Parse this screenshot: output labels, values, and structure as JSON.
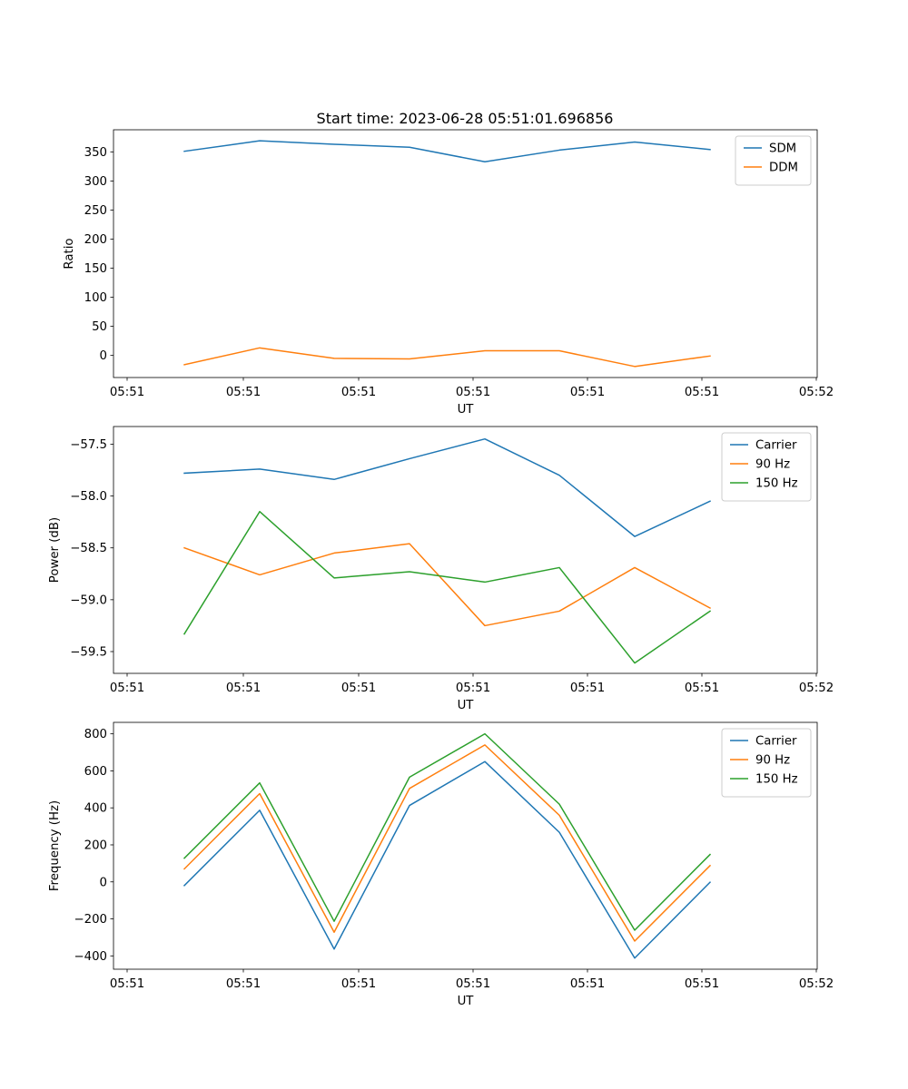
{
  "figure": {
    "title": "Start time: 2023-06-28 05:51:01.696856"
  },
  "chart_data": [
    {
      "type": "line",
      "title": "Start time: 2023-06-28 05:51:01.696856",
      "xlabel": "UT",
      "ylabel": "Ratio",
      "x_tick_labels": [
        "05:51",
        "05:51",
        "05:51",
        "05:51",
        "05:51",
        "05:51",
        "05:52"
      ],
      "y_ticks": [
        0,
        50,
        100,
        150,
        200,
        250,
        300,
        350
      ],
      "ylim": [
        -38,
        388
      ],
      "legend_position": "top-right",
      "grid": false,
      "series": [
        {
          "name": "SDM",
          "color": "#1f77b4",
          "values": [
            351,
            369,
            363,
            358,
            333,
            353,
            367,
            354
          ]
        },
        {
          "name": "DDM",
          "color": "#ff7f0e",
          "values": [
            -16,
            13,
            -5,
            -6,
            8,
            8,
            -19,
            -1
          ]
        }
      ]
    },
    {
      "type": "line",
      "title": "",
      "xlabel": "UT",
      "ylabel": "Power (dB)",
      "x_tick_labels": [
        "05:51",
        "05:51",
        "05:51",
        "05:51",
        "05:51",
        "05:51",
        "05:52"
      ],
      "y_ticks": [
        -59.5,
        -59.0,
        -58.5,
        -58.0,
        -57.5
      ],
      "y_tick_labels": [
        "−59.5",
        "−59.0",
        "−58.5",
        "−58.0",
        "−57.5"
      ],
      "ylim": [
        -59.71,
        -57.33
      ],
      "legend_position": "top-right",
      "grid": false,
      "series": [
        {
          "name": "Carrier",
          "color": "#1f77b4",
          "values": [
            -57.78,
            -57.74,
            -57.84,
            -57.64,
            -57.45,
            -57.8,
            -58.39,
            -58.05
          ]
        },
        {
          "name": "90 Hz",
          "color": "#ff7f0e",
          "values": [
            -58.5,
            -58.76,
            -58.55,
            -58.46,
            -59.25,
            -59.11,
            -58.69,
            -59.08
          ]
        },
        {
          "name": "150 Hz",
          "color": "#2ca02c",
          "values": [
            -59.33,
            -58.15,
            -58.79,
            -58.73,
            -58.83,
            -58.69,
            -59.61,
            -59.11
          ]
        }
      ]
    },
    {
      "type": "line",
      "title": "",
      "xlabel": "UT",
      "ylabel": "Frequency (Hz)",
      "x_tick_labels": [
        "05:51",
        "05:51",
        "05:51",
        "05:51",
        "05:51",
        "05:51",
        "05:52"
      ],
      "y_ticks": [
        -400,
        -200,
        0,
        200,
        400,
        600,
        800
      ],
      "y_tick_labels": [
        "−400",
        "−200",
        "0",
        "200",
        "400",
        "600",
        "800"
      ],
      "ylim": [
        -472,
        862
      ],
      "legend_position": "top-right",
      "grid": false,
      "series": [
        {
          "name": "Carrier",
          "color": "#1f77b4",
          "values": [
            -20,
            387,
            -363,
            413,
            650,
            268,
            -412,
            -2
          ]
        },
        {
          "name": "90 Hz",
          "color": "#ff7f0e",
          "values": [
            70,
            477,
            -272,
            505,
            740,
            360,
            -320,
            88
          ]
        },
        {
          "name": "150 Hz",
          "color": "#2ca02c",
          "values": [
            128,
            535,
            -213,
            566,
            800,
            420,
            -261,
            148
          ]
        }
      ]
    }
  ]
}
